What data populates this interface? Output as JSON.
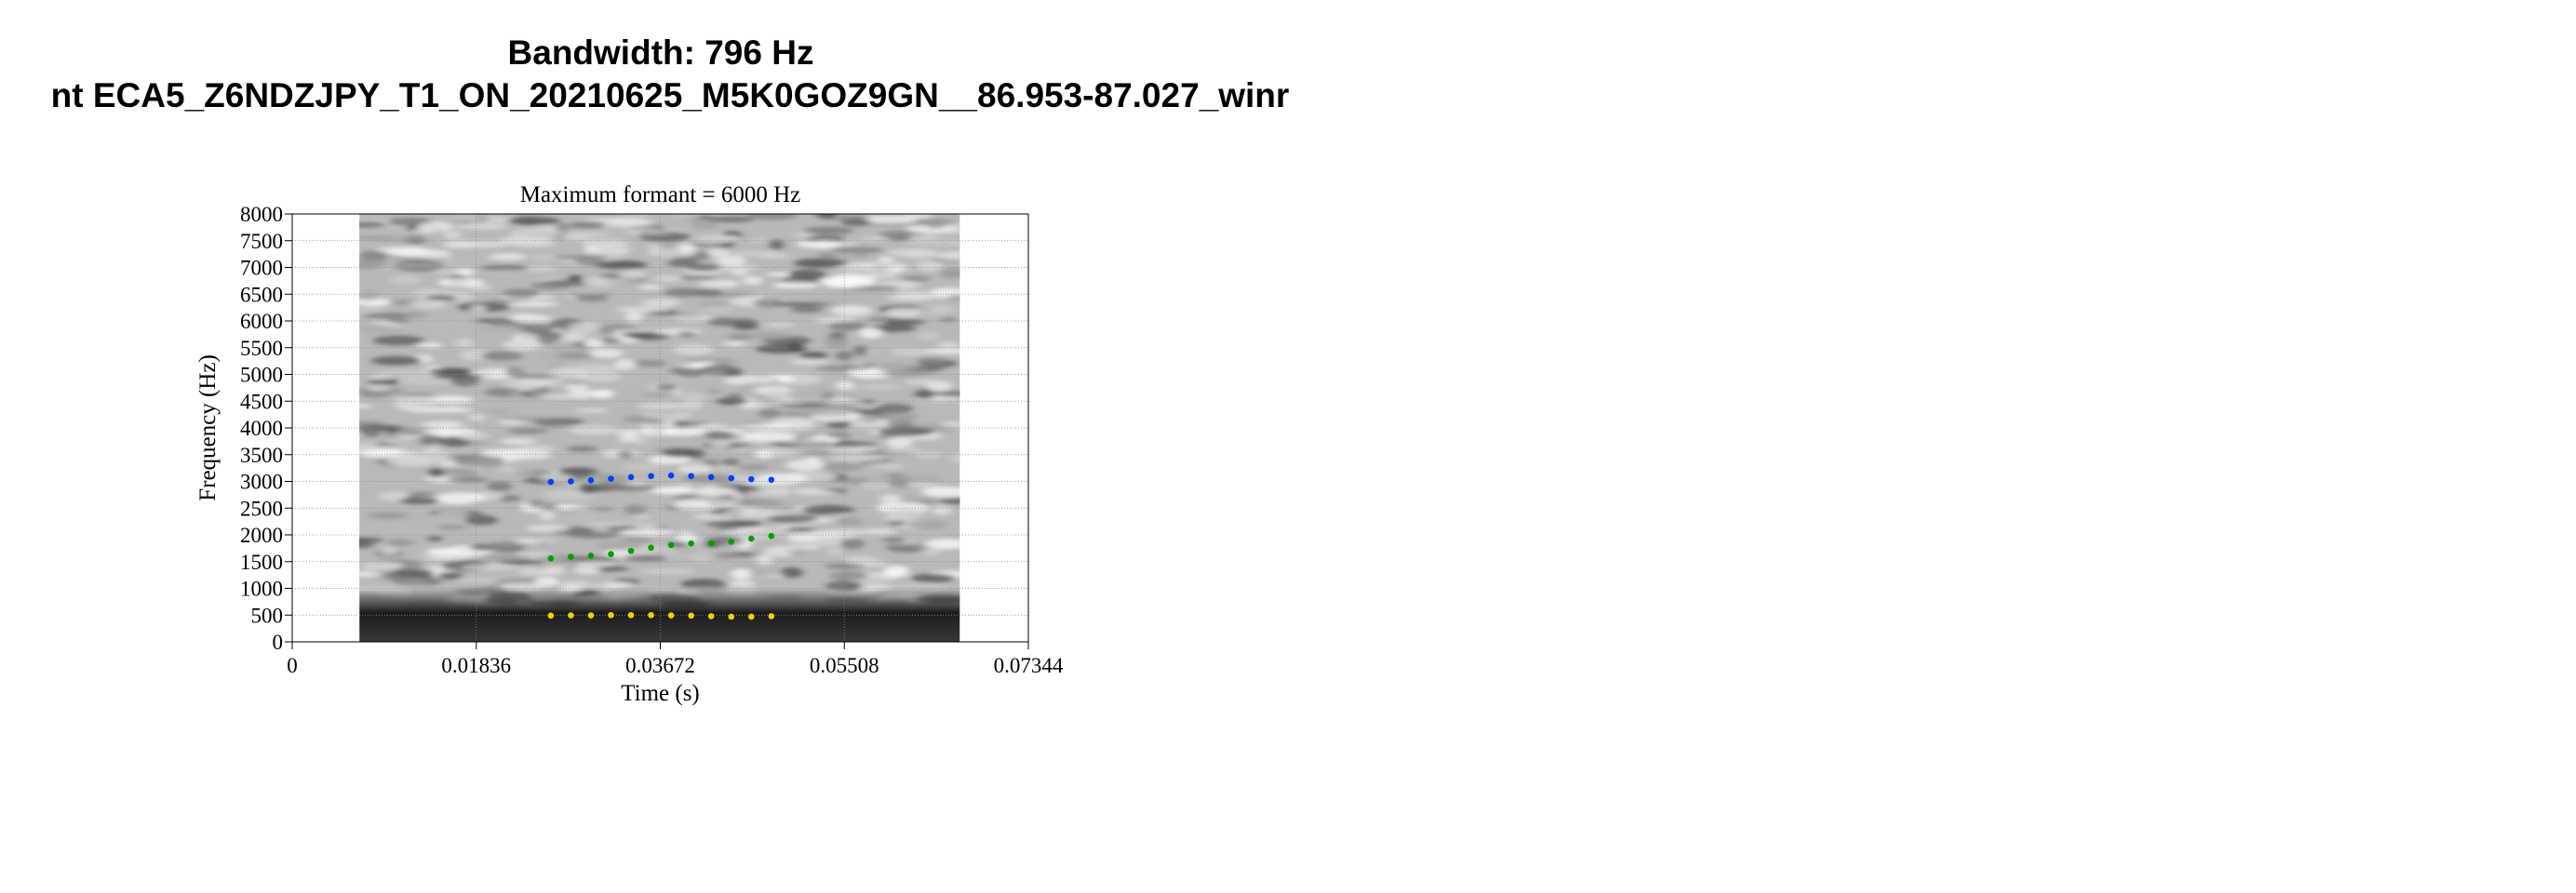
{
  "page": {
    "title_line1": "Bandwidth: 796 Hz",
    "title_line2": "nt ECA5_Z6NDZJPY_T1_ON_20210625_M5K0GOZ9GN__86.953-87.027_winr"
  },
  "chart_data": {
    "type": "scatter",
    "background": "spectrogram (grayscale)",
    "title": "Maximum formant  =  6000 Hz",
    "xlabel": "Time (s)",
    "ylabel": "Frequency (Hz)",
    "xlim": [
      0,
      0.07344
    ],
    "ylim": [
      0,
      8000
    ],
    "x_ticks": [
      "0",
      "0.01836",
      "0.03672",
      "0.05508",
      "0.07344"
    ],
    "y_ticks": [
      "0",
      "500",
      "1000",
      "1500",
      "2000",
      "2500",
      "3000",
      "3500",
      "4000",
      "4500",
      "5000",
      "5500",
      "6000",
      "6500",
      "7000",
      "7500",
      "8000"
    ],
    "grid": true,
    "spectrogram_time_range": [
      0.0067,
      0.0666
    ],
    "series": [
      {
        "color": "#f5d000",
        "x": [
          0.0258,
          0.0278,
          0.0298,
          0.0318,
          0.0338,
          0.0358,
          0.0378,
          0.0398,
          0.0418,
          0.0438,
          0.0458,
          0.0478
        ],
        "y": [
          490,
          495,
          495,
          500,
          500,
          500,
          495,
          490,
          480,
          470,
          470,
          480
        ]
      },
      {
        "color": "#00a000",
        "x": [
          0.0258,
          0.0278,
          0.0298,
          0.0318,
          0.0338,
          0.0358,
          0.0378,
          0.0398,
          0.0418,
          0.0438,
          0.0458,
          0.0478
        ],
        "y": [
          1560,
          1590,
          1610,
          1640,
          1700,
          1760,
          1810,
          1840,
          1840,
          1870,
          1930,
          1980
        ]
      },
      {
        "color": "#0040ff",
        "x": [
          0.0258,
          0.0278,
          0.0298,
          0.0318,
          0.0338,
          0.0358,
          0.0378,
          0.0398,
          0.0418,
          0.0438,
          0.0458,
          0.0478
        ],
        "y": [
          2990,
          3000,
          3020,
          3050,
          3080,
          3100,
          3110,
          3100,
          3080,
          3060,
          3040,
          3030
        ]
      }
    ]
  }
}
